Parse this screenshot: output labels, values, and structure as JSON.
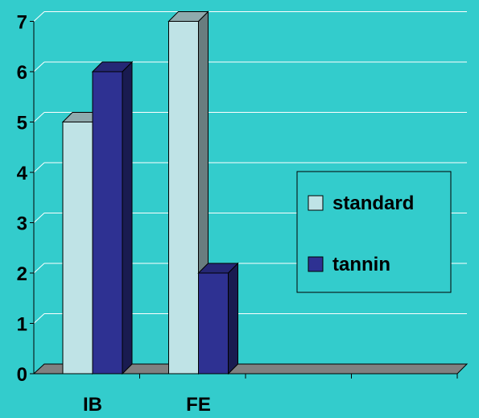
{
  "chart_data": {
    "type": "bar",
    "categories": [
      "IB",
      "FE",
      "",
      ""
    ],
    "series": [
      {
        "name": "standard",
        "values": [
          5,
          7,
          null,
          null
        ],
        "color": "#BFE3E6"
      },
      {
        "name": "tannin",
        "values": [
          6,
          2,
          null,
          null
        ],
        "color": "#2E3192"
      }
    ],
    "ylim": [
      0,
      7
    ],
    "yticks": [
      0,
      1,
      2,
      3,
      4,
      5,
      6,
      7
    ],
    "grid": true,
    "legend": "right",
    "style": "3d-column",
    "colors": {
      "background": "#33CCCC",
      "gridline": "#FFFFFF",
      "floor": "#808080",
      "legend_bg": "#33CCCC"
    }
  }
}
